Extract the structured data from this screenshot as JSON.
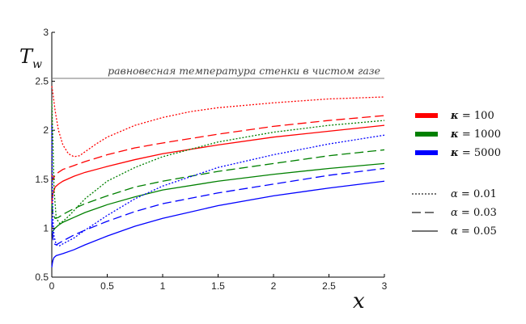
{
  "chart_data": {
    "type": "line",
    "xlabel": "x",
    "ylabel_main": "T",
    "ylabel_sub": "w",
    "xlim": [
      0,
      3
    ],
    "ylim": [
      0.5,
      3
    ],
    "xticks": [
      "0",
      "0.5",
      "1",
      "1.5",
      "2",
      "2.5",
      "3"
    ],
    "yticks": [
      "0.5",
      "1",
      "1.5",
      "2",
      "2.5",
      "3"
    ],
    "grid": false,
    "reference_line": {
      "y": 2.53,
      "label": "равновесная температура стенки в чистом газе",
      "color": "#777777"
    },
    "legend_colors": [
      {
        "symbol": "κ",
        "text": " = 100",
        "color": "#ff0000"
      },
      {
        "symbol": "κ",
        "text": " = 1000",
        "color": "#008000"
      },
      {
        "symbol": "κ",
        "text": " = 5000",
        "color": "#0000ff"
      }
    ],
    "legend_styles": [
      {
        "symbol": "α",
        "text": " = 0.01",
        "dash": "dotted"
      },
      {
        "symbol": "α",
        "text": " = 0.03",
        "dash": "dashed"
      },
      {
        "symbol": "α",
        "text": " = 0.05",
        "dash": "solid"
      }
    ],
    "series": [
      {
        "kappa": 100,
        "alpha": 0.01,
        "color": "#ff0000",
        "dash": "dotted",
        "x": [
          0,
          0.01,
          0.03,
          0.06,
          0.1,
          0.15,
          0.2,
          0.25,
          0.3,
          0.4,
          0.5,
          0.75,
          1,
          1.25,
          1.5,
          2,
          2.5,
          3
        ],
        "y": [
          2.45,
          2.38,
          2.2,
          2.0,
          1.85,
          1.76,
          1.73,
          1.74,
          1.78,
          1.86,
          1.93,
          2.05,
          2.13,
          2.19,
          2.23,
          2.28,
          2.32,
          2.34
        ]
      },
      {
        "kappa": 100,
        "alpha": 0.03,
        "color": "#ff0000",
        "dash": "dashed",
        "x": [
          0,
          0.01,
          0.03,
          0.06,
          0.1,
          0.2,
          0.3,
          0.5,
          0.75,
          1,
          1.5,
          2,
          2.5,
          3
        ],
        "y": [
          1.55,
          1.5,
          1.54,
          1.57,
          1.6,
          1.64,
          1.68,
          1.75,
          1.82,
          1.87,
          1.96,
          2.04,
          2.1,
          2.15
        ]
      },
      {
        "kappa": 100,
        "alpha": 0.05,
        "color": "#ff0000",
        "dash": "solid",
        "x": [
          0,
          0.01,
          0.03,
          0.06,
          0.1,
          0.2,
          0.3,
          0.5,
          0.75,
          1,
          1.5,
          2,
          2.5,
          3
        ],
        "y": [
          1.25,
          1.35,
          1.42,
          1.45,
          1.48,
          1.53,
          1.57,
          1.63,
          1.7,
          1.76,
          1.85,
          1.93,
          1.99,
          2.05
        ]
      },
      {
        "kappa": 1000,
        "alpha": 0.01,
        "color": "#008000",
        "dash": "dotted",
        "x": [
          0,
          0.01,
          0.02,
          0.04,
          0.07,
          0.1,
          0.15,
          0.2,
          0.3,
          0.5,
          0.75,
          1,
          1.5,
          2,
          2.5,
          3
        ],
        "y": [
          2.3,
          1.9,
          1.4,
          1.1,
          1.05,
          1.07,
          1.12,
          1.18,
          1.3,
          1.48,
          1.62,
          1.73,
          1.88,
          1.98,
          2.05,
          2.1
        ]
      },
      {
        "kappa": 1000,
        "alpha": 0.03,
        "color": "#008000",
        "dash": "dashed",
        "x": [
          0,
          0.01,
          0.03,
          0.06,
          0.1,
          0.2,
          0.3,
          0.5,
          0.75,
          1,
          1.5,
          2,
          2.5,
          3
        ],
        "y": [
          1.25,
          1.15,
          1.1,
          1.11,
          1.14,
          1.2,
          1.25,
          1.33,
          1.42,
          1.48,
          1.58,
          1.66,
          1.74,
          1.8
        ]
      },
      {
        "kappa": 1000,
        "alpha": 0.05,
        "color": "#008000",
        "dash": "solid",
        "x": [
          0,
          0.01,
          0.03,
          0.06,
          0.1,
          0.2,
          0.3,
          0.5,
          0.75,
          1,
          1.5,
          2,
          2.5,
          3
        ],
        "y": [
          0.95,
          0.97,
          1.0,
          1.03,
          1.06,
          1.11,
          1.16,
          1.24,
          1.32,
          1.39,
          1.48,
          1.55,
          1.61,
          1.66
        ]
      },
      {
        "kappa": 5000,
        "alpha": 0.01,
        "color": "#0000ff",
        "dash": "dotted",
        "x": [
          0,
          0.005,
          0.01,
          0.02,
          0.04,
          0.07,
          0.1,
          0.15,
          0.2,
          0.3,
          0.5,
          0.75,
          1,
          1.5,
          2,
          2.5,
          3
        ],
        "y": [
          2.05,
          1.5,
          1.1,
          0.92,
          0.83,
          0.82,
          0.84,
          0.87,
          0.9,
          0.98,
          1.13,
          1.3,
          1.43,
          1.62,
          1.75,
          1.86,
          1.95
        ]
      },
      {
        "kappa": 5000,
        "alpha": 0.03,
        "color": "#0000ff",
        "dash": "dashed",
        "x": [
          0,
          0.01,
          0.02,
          0.04,
          0.07,
          0.1,
          0.2,
          0.3,
          0.5,
          0.75,
          1,
          1.5,
          2,
          2.5,
          3
        ],
        "y": [
          1.1,
          0.9,
          0.84,
          0.83,
          0.85,
          0.87,
          0.93,
          0.98,
          1.07,
          1.17,
          1.25,
          1.36,
          1.45,
          1.54,
          1.61
        ]
      },
      {
        "kappa": 5000,
        "alpha": 0.05,
        "color": "#0000ff",
        "dash": "solid",
        "x": [
          0,
          0.005,
          0.01,
          0.02,
          0.04,
          0.07,
          0.1,
          0.2,
          0.3,
          0.5,
          0.75,
          1,
          1.5,
          2,
          2.5,
          3
        ],
        "y": [
          0.6,
          0.64,
          0.67,
          0.7,
          0.72,
          0.73,
          0.74,
          0.78,
          0.83,
          0.92,
          1.02,
          1.1,
          1.23,
          1.33,
          1.41,
          1.48
        ]
      }
    ]
  }
}
